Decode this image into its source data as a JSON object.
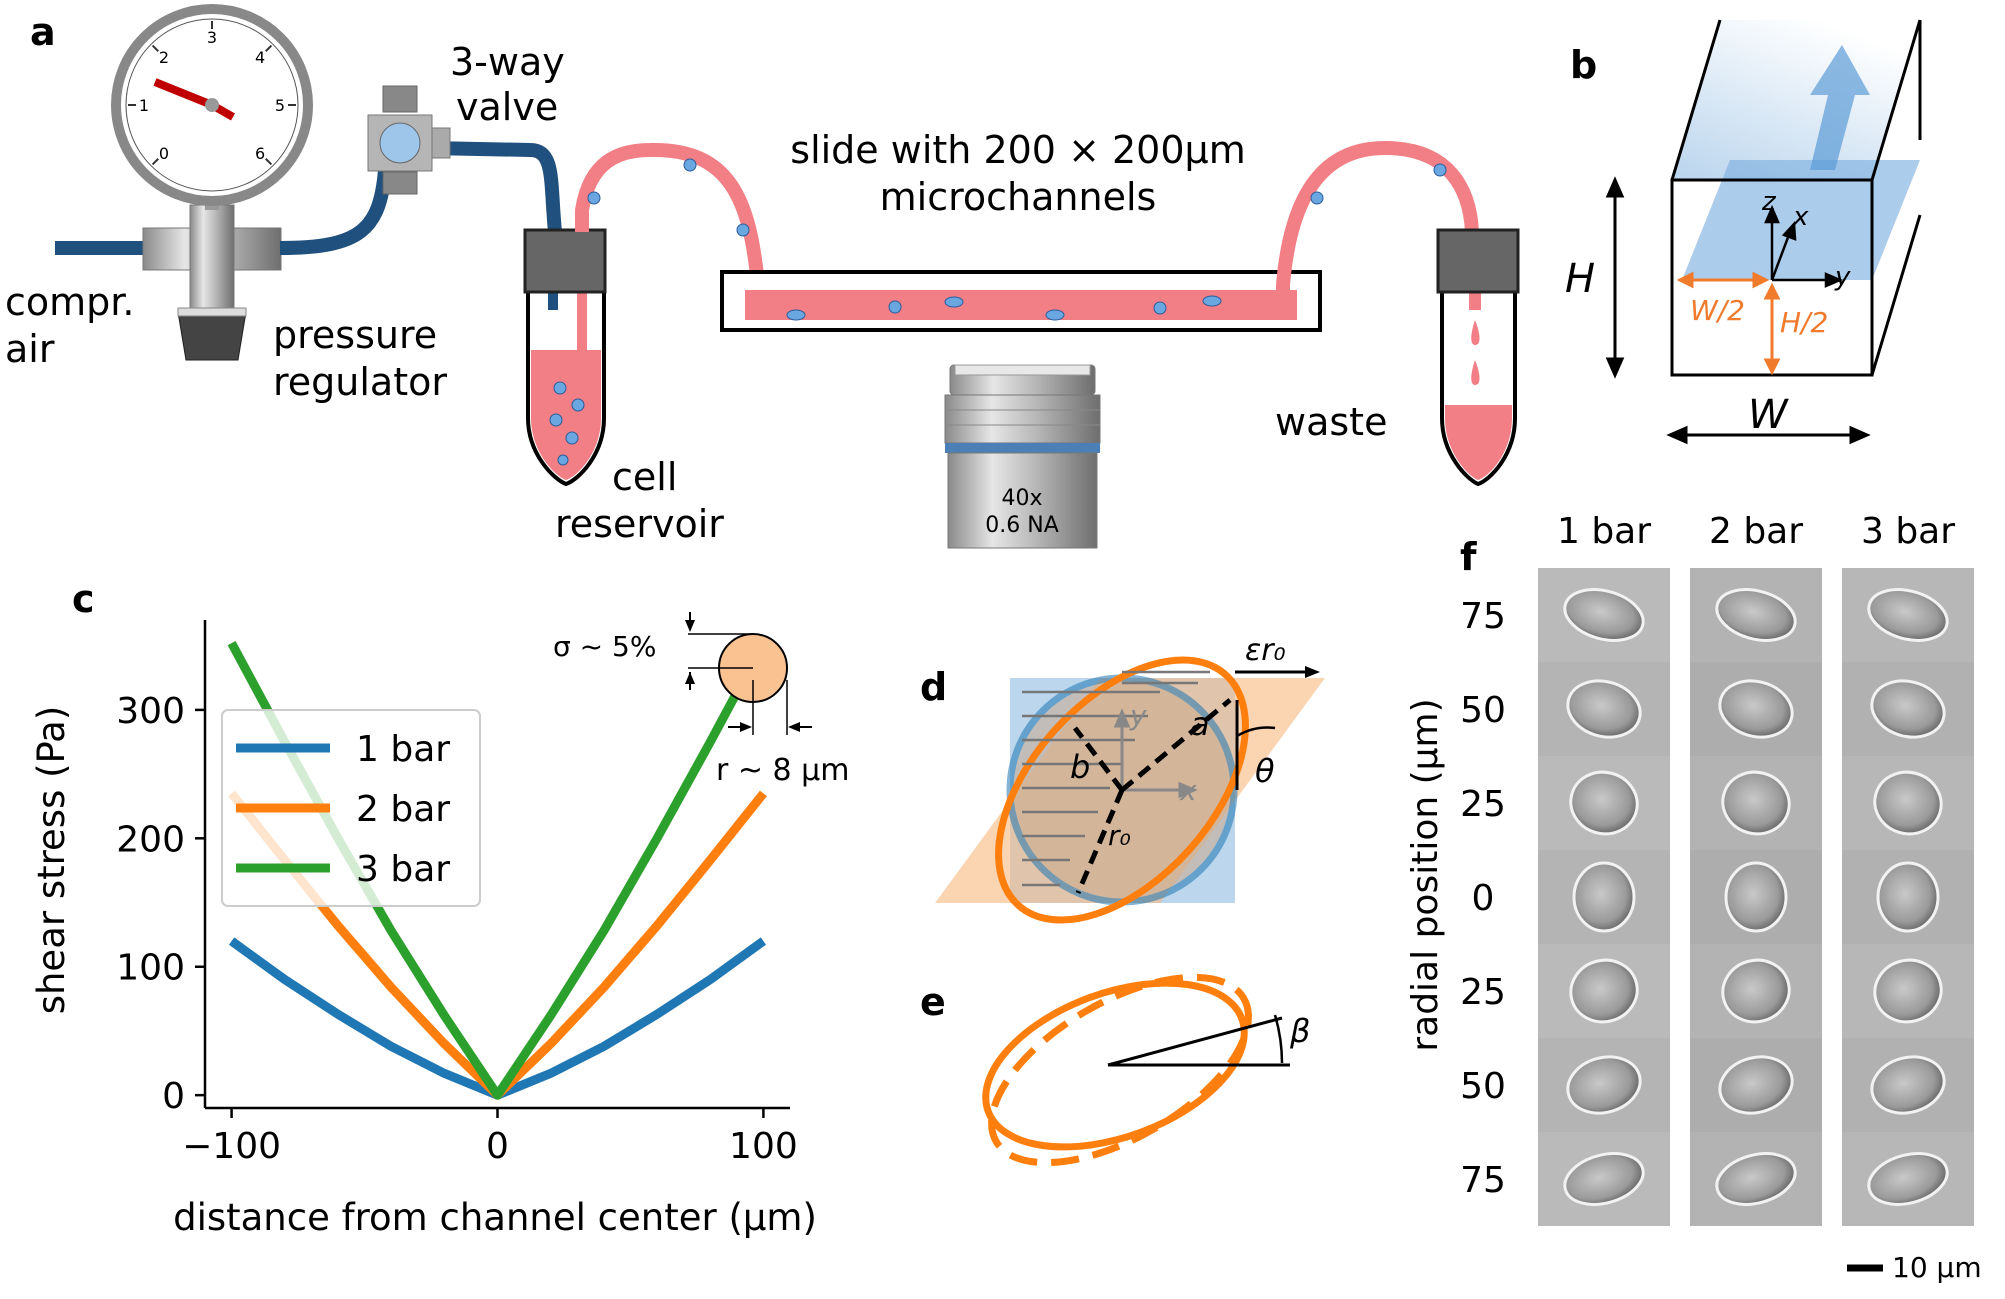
{
  "panel_letters": {
    "a": "a",
    "b": "b",
    "c": "c",
    "d": "d",
    "e": "e",
    "f": "f"
  },
  "panel_a": {
    "compr_air": [
      "compr.",
      "air"
    ],
    "regulator": [
      "pressure",
      "regulator"
    ],
    "valve": [
      "3-way",
      "valve"
    ],
    "slide": [
      "slide with 200 × 200μm",
      "microchannels"
    ],
    "reservoir": [
      "cell",
      "reservoir"
    ],
    "waste": "waste",
    "objective": [
      "40x",
      "0.6 NA"
    ],
    "gauge_ticks": [
      "0",
      "1",
      "2",
      "3",
      "4",
      "5",
      "6"
    ]
  },
  "panel_b": {
    "H": "H",
    "W": "W",
    "W2": "W/2",
    "H2": "H/2",
    "axis_x": "x",
    "axis_y": "y",
    "axis_z": "z"
  },
  "panel_d": {
    "eps_r0": "εr₀",
    "a": "a",
    "b": "b",
    "r0": "r₀",
    "theta": "θ",
    "x": "x",
    "y": "y"
  },
  "panel_e": {
    "beta": "β"
  },
  "panel_f": {
    "columns": [
      "1 bar",
      "2 bar",
      "3 bar"
    ],
    "rows": [
      "75",
      "50",
      "25",
      "0",
      "25",
      "50",
      "75"
    ],
    "ylabel": "radial position (µm)",
    "scalebar": "10 µm"
  },
  "colors": {
    "bar1": "#1f77b4",
    "bar2": "#ff7f0e",
    "bar3": "#2ca02c",
    "tubing": "#f27e86",
    "hose": "#20507e"
  },
  "chart_data": {
    "type": "line",
    "xlabel": "distance from channel center (μm)",
    "ylabel": "shear stress (Pa)",
    "xlim": [
      -110,
      110
    ],
    "ylim": [
      -10,
      370
    ],
    "xticks": [
      "−100",
      "0",
      "100"
    ],
    "yticks": [
      "0",
      "100",
      "200",
      "300"
    ],
    "x": [
      -100,
      -80,
      -60,
      -40,
      -20,
      0,
      20,
      40,
      60,
      80,
      100
    ],
    "series": [
      {
        "name": "1 bar",
        "values": [
          120,
          90,
          63,
          38,
          17,
          0,
          17,
          38,
          63,
          90,
          120
        ]
      },
      {
        "name": "2 bar",
        "values": [
          235,
          183,
          132,
          84,
          40,
          0,
          40,
          84,
          132,
          183,
          235
        ]
      },
      {
        "name": "3 bar",
        "values": [
          352,
          275,
          200,
          128,
          62,
          0,
          62,
          128,
          200,
          275,
          352
        ]
      }
    ],
    "legend": "upper left",
    "annotations": {
      "sigma": "σ ~ 5%",
      "r": "r ~ 8 µm"
    }
  }
}
